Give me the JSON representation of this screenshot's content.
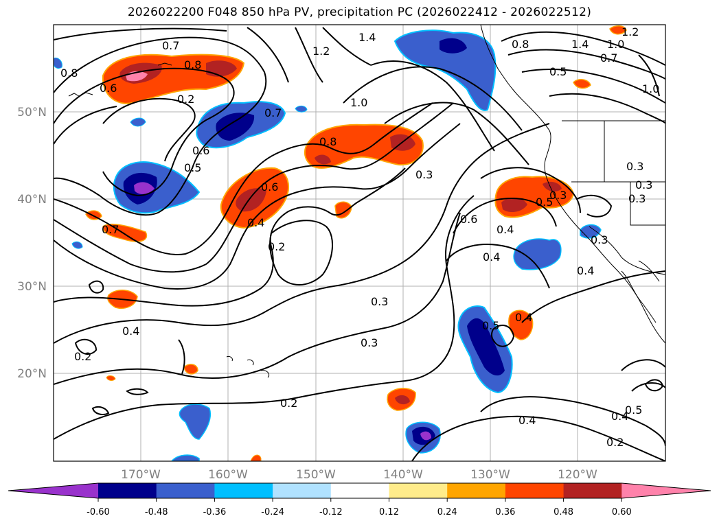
{
  "title": "2026022200 F048 850 hPa PV, precipitation PC (2026022412 - 2026022512)",
  "lat_labels": [
    "50°N",
    "40°N",
    "30°N",
    "20°N"
  ],
  "lon_labels": [
    "170°W",
    "160°W",
    "150°W",
    "140°W",
    "130°W",
    "120°W"
  ],
  "colorbar": {
    "colors": [
      "#9932cc",
      "#00008b",
      "#3a5fcd",
      "#00bfff",
      "#b0e2ff",
      "#ffffff",
      "#ffec8b",
      "#ffa500",
      "#ff4500",
      "#b22222",
      "#ff82ab"
    ],
    "ticks": [
      "-0.60",
      "-0.48",
      "-0.36",
      "-0.24",
      "-0.12",
      "0.12",
      "0.24",
      "0.36",
      "0.48",
      "0.60"
    ]
  },
  "contour_labels": [
    "0.7",
    "0.8",
    "0.6",
    "0.2",
    "0.8",
    "1.2",
    "1.4",
    "1.0",
    "0.7",
    "0.5",
    "0.6",
    "0.8",
    "0.6",
    "0.4",
    "0.2",
    "0.7",
    "0.5",
    "0.8",
    "1.4",
    "1.0",
    "0.7",
    "1.2",
    "0.5",
    "1.0",
    "0.3",
    "0.3",
    "0.3",
    "0.6",
    "0.4",
    "0.4",
    "0.3",
    "0.4",
    "0.3",
    "0.3",
    "0.4",
    "0.5",
    "0.4",
    "0.2",
    "0.2",
    "0.4",
    "0.4",
    "0.5",
    "0.2",
    "0.3",
    "0.3"
  ]
}
